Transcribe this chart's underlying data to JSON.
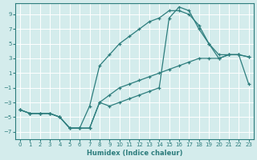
{
  "title": "",
  "xlabel": "Humidex (Indice chaleur)",
  "ylabel": "",
  "background_color": "#d4ecec",
  "grid_color": "#ffffff",
  "line_color": "#2d7d7d",
  "xlim": [
    -0.5,
    23.5
  ],
  "ylim": [
    -8,
    10.5
  ],
  "xticks": [
    0,
    1,
    2,
    3,
    4,
    5,
    6,
    7,
    8,
    9,
    10,
    11,
    12,
    13,
    14,
    15,
    16,
    17,
    18,
    19,
    20,
    21,
    22,
    23
  ],
  "yticks": [
    -7,
    -5,
    -3,
    -1,
    1,
    3,
    5,
    7,
    9
  ],
  "line1_x": [
    0,
    1,
    2,
    3,
    4,
    5,
    6,
    7,
    8,
    9,
    10,
    11,
    12,
    13,
    14,
    15,
    16,
    17,
    18,
    19,
    20,
    21,
    22,
    23
  ],
  "line1_y": [
    -4,
    -4.5,
    -4.5,
    -4.5,
    -5,
    -6.5,
    -6.5,
    -6.5,
    -3,
    -3.5,
    -3,
    -2.5,
    -2,
    -1.5,
    -1,
    8.5,
    10,
    9.5,
    7,
    5,
    3,
    3.5,
    3.5,
    3.2
  ],
  "line2_x": [
    0,
    1,
    2,
    3,
    4,
    5,
    6,
    7,
    8,
    9,
    10,
    11,
    12,
    13,
    14,
    15,
    16,
    17,
    18,
    19,
    20,
    21,
    22,
    23
  ],
  "line2_y": [
    -4,
    -4.5,
    -4.5,
    -4.5,
    -5,
    -6.5,
    -6.5,
    -3.5,
    2,
    3.5,
    5,
    6,
    7,
    8,
    8.5,
    9.5,
    9.5,
    9,
    7.5,
    5,
    3.5,
    3.5,
    3.5,
    3.2
  ],
  "line3_x": [
    0,
    1,
    2,
    3,
    4,
    5,
    6,
    7,
    8,
    9,
    10,
    11,
    12,
    13,
    14,
    15,
    16,
    17,
    18,
    19,
    20,
    21,
    22,
    23
  ],
  "line3_y": [
    -4,
    -4.5,
    -4.5,
    -4.5,
    -5,
    -6.5,
    -6.5,
    -6.5,
    -3,
    -2,
    -1,
    -0.5,
    0,
    0.5,
    1,
    1.5,
    2,
    2.5,
    3,
    3,
    3,
    3.5,
    3.5,
    -0.5
  ]
}
